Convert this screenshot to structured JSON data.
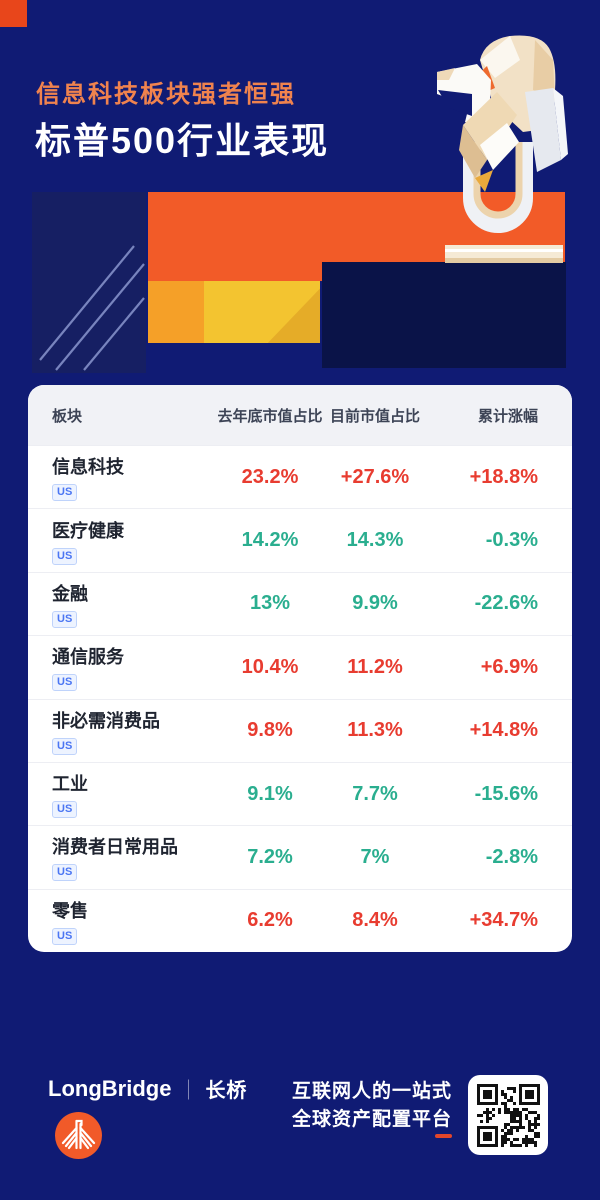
{
  "palette": {
    "background_navy": "#101B74",
    "deep_navy": "#0A1348",
    "accent_orange": "#F25B28",
    "accent_amber": "#F5A028",
    "accent_yellow": "#F3C430",
    "corner_square": "#E8461B",
    "kicker_orange": "#F0834E",
    "up_red": "#E83C30",
    "down_green": "#2AAE8F",
    "brand_orange": "#F15A29",
    "badge_blue": "#4B76F3"
  },
  "header": {
    "kicker": "信息科技板块强者恒强",
    "title": "标普500行业表现"
  },
  "table": {
    "columns": [
      "板块",
      "去年底市值占比",
      "目前市值占比",
      "累计涨幅"
    ],
    "rows": [
      {
        "name": "信息科技",
        "tag": "US",
        "prev": "23.2%",
        "curr": "+27.6%",
        "chg": "+18.8%",
        "trend": "up"
      },
      {
        "name": "医疗健康",
        "tag": "US",
        "prev": "14.2%",
        "curr": "14.3%",
        "chg": "-0.3%",
        "trend": "down"
      },
      {
        "name": "金融",
        "tag": "US",
        "prev": "13%",
        "curr": "9.9%",
        "chg": "-22.6%",
        "trend": "down"
      },
      {
        "name": "通信服务",
        "tag": "US",
        "prev": "10.4%",
        "curr": "11.2%",
        "chg": "+6.9%",
        "trend": "up"
      },
      {
        "name": "非必需消费品",
        "tag": "US",
        "prev": "9.8%",
        "curr": "11.3%",
        "chg": "+14.8%",
        "trend": "up"
      },
      {
        "name": "工业",
        "tag": "US",
        "prev": "9.1%",
        "curr": "7.7%",
        "chg": "-15.6%",
        "trend": "down"
      },
      {
        "name": "消费者日常用品",
        "tag": "US",
        "prev": "7.2%",
        "curr": "7%",
        "chg": "-2.8%",
        "trend": "down"
      },
      {
        "name": "零售",
        "tag": "US",
        "prev": "6.2%",
        "curr": "8.4%",
        "chg": "+34.7%",
        "trend": "up"
      }
    ]
  },
  "footer": {
    "brand": "LongBridge",
    "divider": "｜",
    "brand_cn": "长桥",
    "tagline_line1": "互联网人的一站式",
    "tagline_line2": "全球资产配置平台"
  },
  "chart_data": {
    "type": "table",
    "title": "标普500行业表现",
    "subtitle": "信息科技板块强者恒强",
    "columns": [
      "板块",
      "去年底市值占比",
      "目前市值占比",
      "累计涨幅"
    ],
    "rows": [
      [
        "信息科技 (US)",
        23.2,
        27.6,
        18.8
      ],
      [
        "医疗健康 (US)",
        14.2,
        14.3,
        -0.3
      ],
      [
        "金融 (US)",
        13.0,
        9.9,
        -22.6
      ],
      [
        "通信服务 (US)",
        10.4,
        11.2,
        6.9
      ],
      [
        "非必需消费品 (US)",
        9.8,
        11.3,
        14.8
      ],
      [
        "工业 (US)",
        9.1,
        7.7,
        -15.6
      ],
      [
        "消费者日常用品 (US)",
        7.2,
        7.0,
        -2.8
      ],
      [
        "零售 (US)",
        6.2,
        8.4,
        34.7
      ]
    ],
    "units": "percent",
    "note": "positive values shown red (up), negative shown green (down)"
  }
}
